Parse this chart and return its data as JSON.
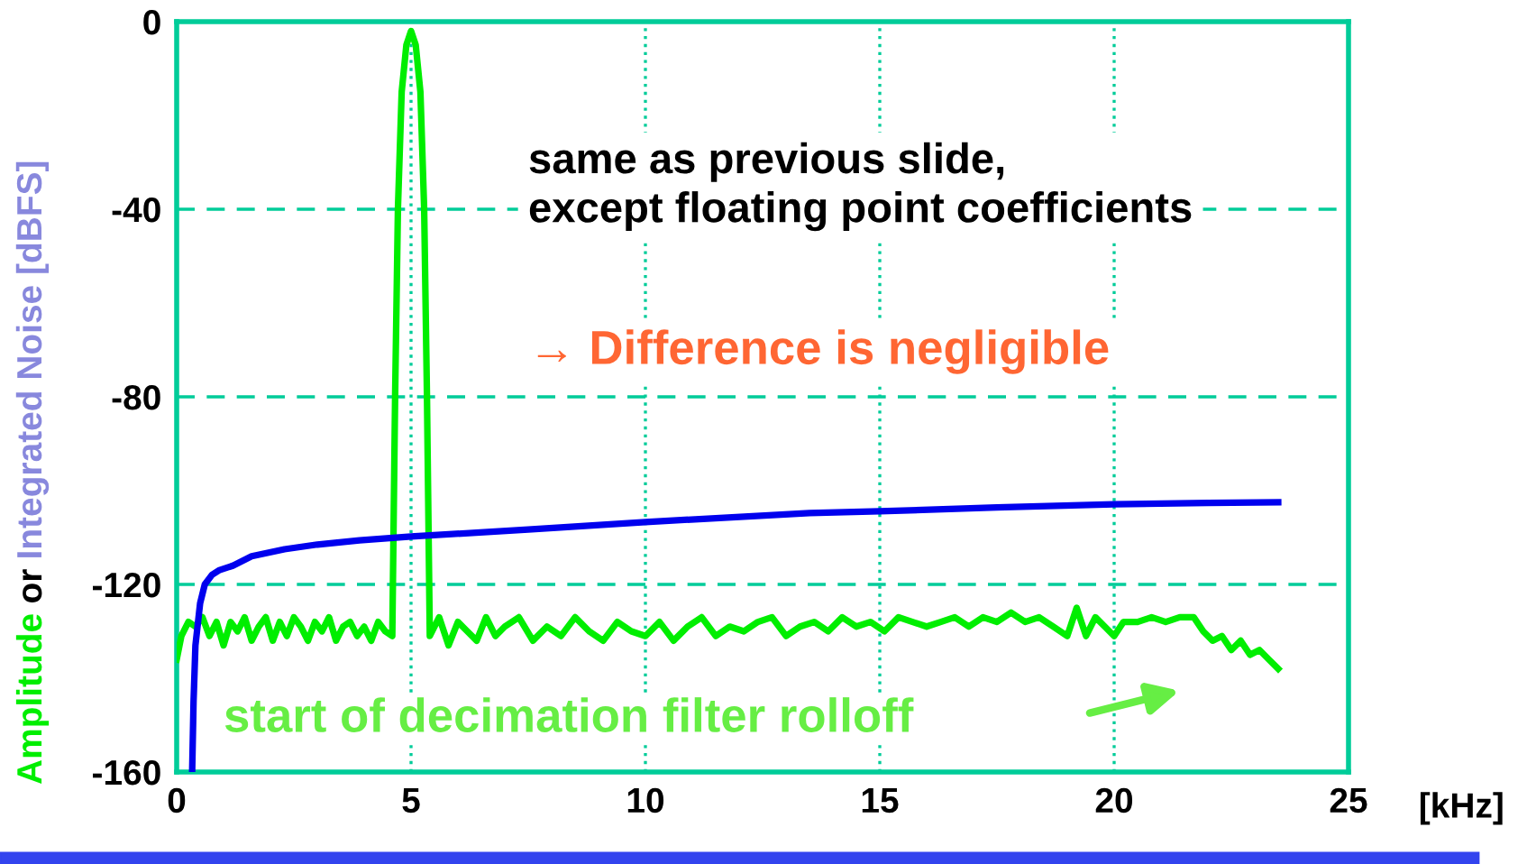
{
  "chart_data": {
    "type": "line",
    "ylabel": "Amplitude or Integrated Noise [dBFS]",
    "xlabel": "[kHz]",
    "xlim": [
      0,
      25
    ],
    "xticks": [
      0,
      5,
      10,
      15,
      20,
      25
    ],
    "ylim": [
      -160,
      0
    ],
    "yticks": [
      0,
      -40,
      -80,
      -120,
      -160
    ],
    "grid": true,
    "series": [
      {
        "color": "#00ee00",
        "x": [
          0,
          0.1,
          0.25,
          0.4,
          0.55,
          0.7,
          0.85,
          1.0,
          1.15,
          1.3,
          1.45,
          1.6,
          1.75,
          1.9,
          2.05,
          2.2,
          2.35,
          2.5,
          2.65,
          2.8,
          2.95,
          3.1,
          3.25,
          3.4,
          3.55,
          3.7,
          3.85,
          4.0,
          4.15,
          4.3,
          4.45,
          4.6,
          4.66,
          4.72,
          4.8,
          4.9,
          5.0,
          5.1,
          5.2,
          5.28,
          5.34,
          5.4,
          5.6,
          5.8,
          6.0,
          6.2,
          6.4,
          6.6,
          6.8,
          7.0,
          7.3,
          7.6,
          7.9,
          8.2,
          8.5,
          8.8,
          9.1,
          9.4,
          9.7,
          10.0,
          10.3,
          10.6,
          10.9,
          11.2,
          11.5,
          11.8,
          12.1,
          12.4,
          12.7,
          13.0,
          13.3,
          13.6,
          13.9,
          14.2,
          14.5,
          14.8,
          15.1,
          15.4,
          15.7,
          16.0,
          16.3,
          16.6,
          16.9,
          17.2,
          17.5,
          17.8,
          18.1,
          18.4,
          18.7,
          19.0,
          19.2,
          19.4,
          19.6,
          19.8,
          20.0,
          20.2,
          20.5,
          20.8,
          21.1,
          21.4,
          21.7,
          21.9,
          22.1,
          22.3,
          22.5,
          22.7,
          22.9,
          23.1,
          23.3,
          23.5
        ],
        "values": [
          -136,
          -131,
          -128,
          -129,
          -127,
          -131,
          -128,
          -133,
          -128,
          -130,
          -127,
          -132,
          -129,
          -127,
          -132,
          -128,
          -131,
          -127,
          -129,
          -132,
          -128,
          -130,
          -127,
          -132,
          -129,
          -128,
          -131,
          -129,
          -132,
          -128,
          -130,
          -131,
          -80,
          -40,
          -15,
          -5,
          -2,
          -5,
          -15,
          -40,
          -80,
          -131,
          -127,
          -133,
          -128,
          -130,
          -132,
          -127,
          -131,
          -129,
          -127,
          -132,
          -129,
          -131,
          -127,
          -130,
          -132,
          -128,
          -130,
          -131,
          -128,
          -132,
          -129,
          -127,
          -131,
          -129,
          -130,
          -128,
          -127,
          -131,
          -129,
          -128,
          -130,
          -127,
          -129,
          -128,
          -130,
          -127,
          -128,
          -129,
          -128,
          -127,
          -129,
          -127,
          -128,
          -126,
          -128,
          -127,
          -129,
          -131,
          -125,
          -131,
          -127,
          -129,
          -131,
          -128,
          -128,
          -127,
          -128,
          -127,
          -127,
          -130,
          -132,
          -131,
          -134,
          -132,
          -135,
          -134,
          -136,
          -138
        ]
      },
      {
        "color": "#0000ee",
        "x": [
          0.33,
          0.36,
          0.4,
          0.5,
          0.6,
          0.75,
          0.9,
          1.2,
          1.6,
          2.3,
          3.0,
          3.9,
          5.0,
          7.5,
          10.0,
          13.5,
          15.0,
          17.5,
          20.0,
          22.0,
          23.5
        ],
        "values": [
          -160,
          -145,
          -133,
          -124,
          -120,
          -118,
          -117,
          -116,
          -114,
          -112.5,
          -111.5,
          -110.6,
          -109.8,
          -108.3,
          -106.7,
          -104.8,
          -104.4,
          -103.6,
          -102.9,
          -102.6,
          -102.5
        ]
      }
    ],
    "annotations": [
      "same as previous slide,\nexcept floating point coefficients",
      "→ Difference is negligible",
      "start of decimation filter rolloff"
    ]
  }
}
